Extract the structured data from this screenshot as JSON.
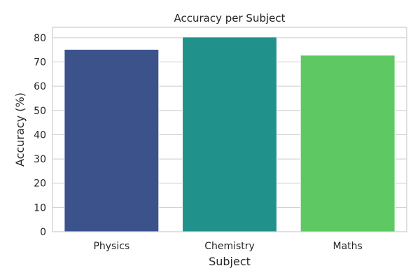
{
  "chart_data": {
    "type": "bar",
    "title": "Accuracy per Subject",
    "xlabel": "Subject",
    "ylabel": "Accuracy (%)",
    "categories": [
      "Physics",
      "Chemistry",
      "Maths"
    ],
    "values": [
      75.2,
      80.3,
      72.8
    ],
    "colors": [
      "#3b528b",
      "#21918c",
      "#5ec962"
    ],
    "ylim": [
      0,
      84.3
    ],
    "yticks": [
      0,
      10,
      20,
      30,
      40,
      50,
      60,
      70,
      80
    ],
    "grid": "y",
    "legend": "none"
  }
}
